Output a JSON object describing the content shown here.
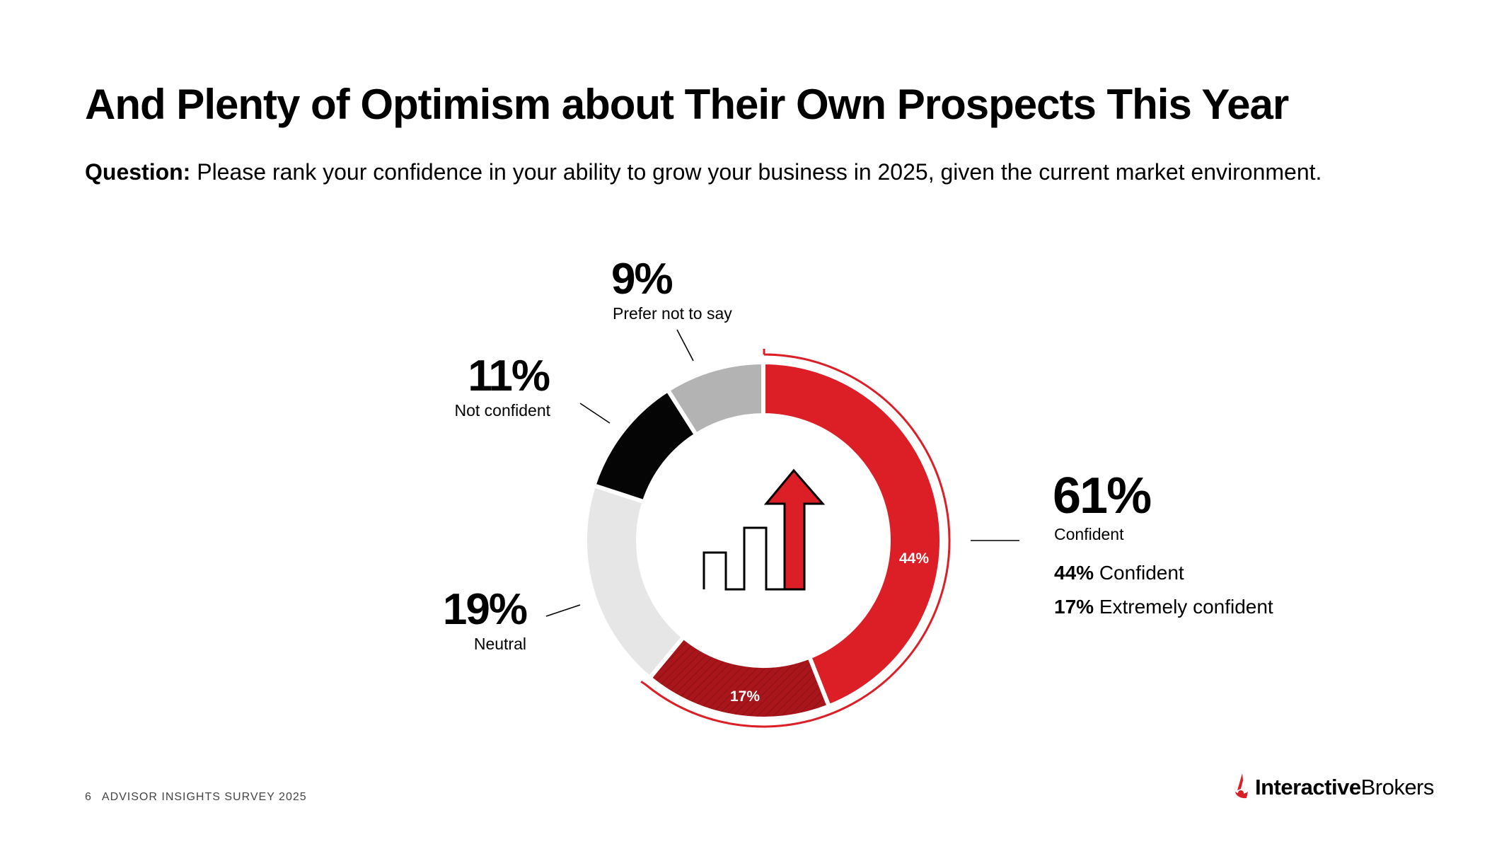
{
  "slide": {
    "title": "And Plenty of Optimism about Their Own Prospects This Year",
    "question_label": "Question:",
    "question_text": " Please rank your confidence in your ability to grow your business in 2025, given the current market environment."
  },
  "footer": {
    "page_number": "6",
    "survey_name": "ADVISOR INSIGHTS SURVEY 2025"
  },
  "brand": {
    "name_bold": "Interactive",
    "name_regular": "Brokers",
    "logo_icon": "interactive-brokers-logo-icon",
    "color": "#d71f26"
  },
  "chart_data": {
    "type": "pie",
    "variant": "donut",
    "center_icon": "growth-chart-arrow-icon",
    "slices": [
      {
        "name": "Confident",
        "value": 44,
        "inner_label": "44%",
        "color": "#dc1f26"
      },
      {
        "name": "Extremely confident",
        "value": 17,
        "inner_label": "17%",
        "color": "#a8151b"
      },
      {
        "name": "Neutral",
        "value": 19,
        "color": "#e6e6e6"
      },
      {
        "name": "Not confident",
        "value": 11,
        "color": "#050505"
      },
      {
        "name": "Prefer not to say",
        "value": 9,
        "color": "#b3b3b3"
      }
    ],
    "callouts": [
      {
        "value_text": "61%",
        "label": "Confident",
        "breakdown": [
          {
            "value_text": "44%",
            "label": " Confident"
          },
          {
            "value_text": "17%",
            "label": " Extremely confident"
          }
        ]
      },
      {
        "value_text": "19%",
        "label": "Neutral"
      },
      {
        "value_text": "11%",
        "label": "Not confident"
      },
      {
        "value_text": "9%",
        "label": "Prefer not to say"
      }
    ],
    "accent_color": "#dc1f26"
  }
}
